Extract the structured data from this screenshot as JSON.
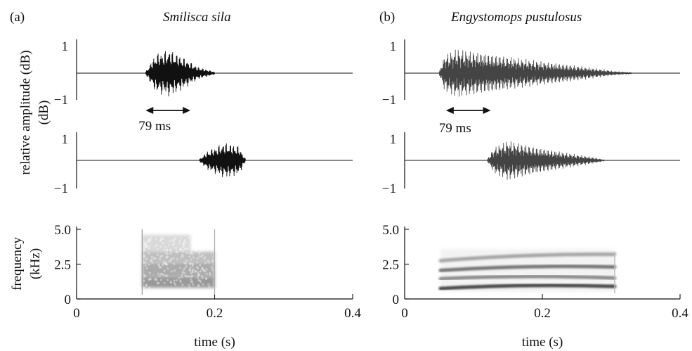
{
  "panel_a": {
    "label": "(a)",
    "species": "Smilisca sila",
    "duration_label": "79 ms"
  },
  "panel_b": {
    "label": "(b)",
    "species": "Engystomops pustulosus",
    "duration_label": "79 ms"
  },
  "colors": {
    "ink": "#111111",
    "spectrogram": "#555555"
  },
  "chart_data": [
    {
      "type": "line",
      "panel": "a-top",
      "xlim": [
        0,
        0.4
      ],
      "ylim": [
        -1,
        1
      ],
      "y_ticks": [
        "1",
        "−1"
      ],
      "ylabel": "relative amplitude (dB)",
      "envelope": [
        [
          0.1,
          0.05
        ],
        [
          0.115,
          0.75
        ],
        [
          0.135,
          0.9
        ],
        [
          0.155,
          0.6
        ],
        [
          0.175,
          0.25
        ],
        [
          0.2,
          0.05
        ]
      ],
      "annotation": {
        "text": "79 ms",
        "x_range": [
          0.1,
          0.165
        ]
      }
    },
    {
      "type": "line",
      "panel": "a-bottom",
      "xlim": [
        0,
        0.4
      ],
      "ylim": [
        -1,
        1
      ],
      "y_ticks": [
        "1",
        "−1"
      ],
      "envelope": [
        [
          0.178,
          0.05
        ],
        [
          0.19,
          0.4
        ],
        [
          0.215,
          0.75
        ],
        [
          0.235,
          0.6
        ],
        [
          0.245,
          0.05
        ]
      ]
    },
    {
      "type": "heatmap",
      "panel": "a-spectrogram",
      "xlim": [
        0,
        0.4
      ],
      "ylim": [
        0,
        5.0
      ],
      "x_ticks": [
        "0",
        "0.2",
        "0.4"
      ],
      "y_ticks": [
        "0",
        "2.5",
        "5.0"
      ],
      "xlabel": "time (s)",
      "ylabel": "frequency (kHz)",
      "bands": [
        {
          "t": [
            0.095,
            0.2
          ],
          "f": [
            0.8,
            1.6
          ],
          "intensity": 0.8
        },
        {
          "t": [
            0.095,
            0.2
          ],
          "f": [
            1.6,
            2.6
          ],
          "intensity": 0.65
        },
        {
          "t": [
            0.095,
            0.2
          ],
          "f": [
            2.6,
            3.4
          ],
          "intensity": 0.5
        },
        {
          "t": [
            0.095,
            0.165
          ],
          "f": [
            3.4,
            4.6
          ],
          "intensity": 0.3
        }
      ]
    },
    {
      "type": "line",
      "panel": "b-top",
      "xlim": [
        0,
        0.4
      ],
      "ylim": [
        -1,
        1
      ],
      "y_ticks": [
        "1",
        "−1"
      ],
      "envelope": [
        [
          0.05,
          0.05
        ],
        [
          0.058,
          0.7
        ],
        [
          0.075,
          0.95
        ],
        [
          0.12,
          0.75
        ],
        [
          0.2,
          0.45
        ],
        [
          0.26,
          0.25
        ],
        [
          0.305,
          0.08
        ],
        [
          0.33,
          0.03
        ]
      ],
      "annotation": {
        "text": "79 ms",
        "x_range": [
          0.06,
          0.125
        ]
      }
    },
    {
      "type": "line",
      "panel": "b-bottom",
      "xlim": [
        0,
        0.4
      ],
      "ylim": [
        -1,
        1
      ],
      "y_ticks": [
        "1",
        "−1"
      ],
      "envelope": [
        [
          0.12,
          0.05
        ],
        [
          0.13,
          0.55
        ],
        [
          0.15,
          0.85
        ],
        [
          0.19,
          0.55
        ],
        [
          0.24,
          0.3
        ],
        [
          0.27,
          0.15
        ],
        [
          0.29,
          0.03
        ]
      ]
    },
    {
      "type": "heatmap",
      "panel": "b-spectrogram",
      "xlim": [
        0,
        0.4
      ],
      "ylim": [
        0,
        5.0
      ],
      "x_ticks": [
        "0",
        "0.2",
        "0.4"
      ],
      "y_ticks": [
        "0",
        "2.5",
        "5.0"
      ],
      "xlabel": "time (s)",
      "harmonics": [
        {
          "f_start": 0.9,
          "f_end": 0.9,
          "intensity": 0.9
        },
        {
          "f_start": 1.6,
          "f_end": 1.5,
          "intensity": 0.55
        },
        {
          "f_start": 2.2,
          "f_end": 2.3,
          "intensity": 0.65
        },
        {
          "f_start": 2.9,
          "f_end": 3.2,
          "intensity": 0.4
        }
      ],
      "t_range": [
        0.052,
        0.305
      ]
    }
  ]
}
